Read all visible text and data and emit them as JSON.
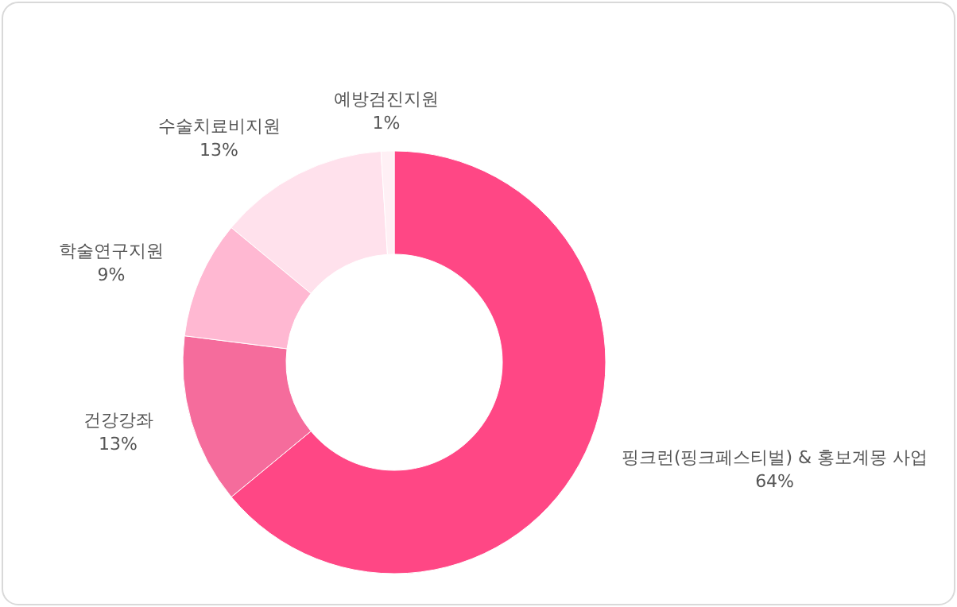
{
  "chart_data": {
    "type": "donut",
    "categories": [
      "핑크런(핑크페스티벌) & 홍보계몽 사업",
      "건강강좌",
      "학술연구지원",
      "수술치료비지원",
      "예방검진지원"
    ],
    "values": [
      64,
      13,
      9,
      13,
      1
    ],
    "value_labels": [
      "64%",
      "13%",
      "9%",
      "13%",
      "1%"
    ],
    "colors": [
      "#ff4785",
      "#f56c9c",
      "#ffb8d2",
      "#ffe1ec",
      "#fff0f5"
    ]
  }
}
